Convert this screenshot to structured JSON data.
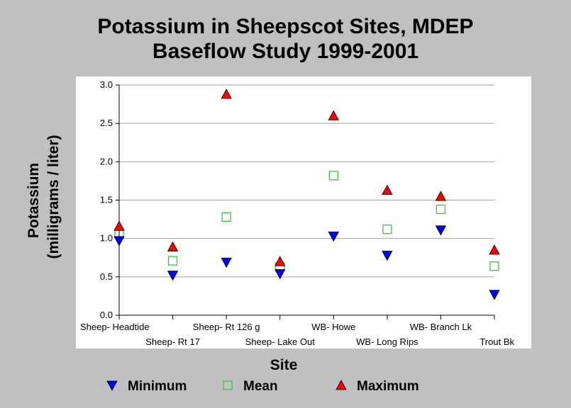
{
  "chart_data": {
    "type": "scatter",
    "title": [
      "Potassium in Sheepscot Sites, MDEP",
      "Baseflow Study 1999-2001"
    ],
    "xlabel": "Site",
    "ylabel": [
      "Potassium",
      "(milligrams / liter)"
    ],
    "ylim": [
      0,
      3.0
    ],
    "yticks": [
      "0.0",
      "0.5",
      "1.0",
      "1.5",
      "2.0",
      "2.5",
      "3.0"
    ],
    "grid": true,
    "legend_position": "bottom",
    "categories": [
      "Sheep- Headtide",
      "Sheep- Rt 17",
      "Sheep- Rt 126 g",
      "Sheep- Lake Out",
      "WB- Howe",
      "WB- Long Rips",
      "WB- Branch Lk",
      "Trout Bk"
    ],
    "series": [
      {
        "name": "Minimum",
        "marker": "triangle-down",
        "color": "#0000ff",
        "values": [
          0.97,
          0.52,
          0.69,
          0.54,
          1.03,
          0.78,
          1.11,
          0.27
        ]
      },
      {
        "name": "Mean",
        "marker": "square-open",
        "color": "#33cc33",
        "values": [
          1.07,
          0.71,
          1.28,
          0.63,
          1.82,
          1.12,
          1.38,
          0.64
        ]
      },
      {
        "name": "Maximum",
        "marker": "triangle-up",
        "color": "#ff0000",
        "values": [
          1.16,
          0.89,
          2.88,
          0.7,
          2.6,
          1.63,
          1.55,
          0.85
        ]
      }
    ]
  }
}
